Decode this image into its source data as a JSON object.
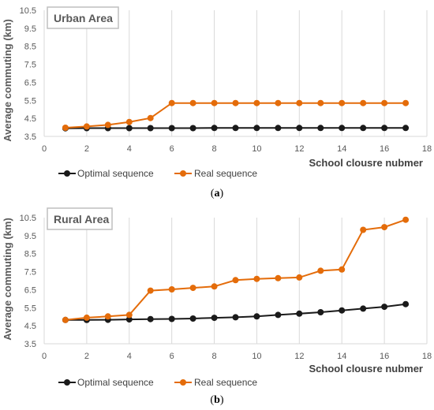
{
  "colors": {
    "optimal": "#1a1a1a",
    "real": "#e46c0a",
    "grid": "#d9d9d9",
    "text": "#595959",
    "title_border": "#bfbfbf"
  },
  "chart_data": [
    {
      "type": "line",
      "title": "Urban Area",
      "caption": "a",
      "xlabel": "School clousre nubmer",
      "ylabel": "Average commuting (km)",
      "xlim": [
        0,
        18
      ],
      "ylim": [
        3.5,
        10.5
      ],
      "xticks": [
        "0",
        "2",
        "4",
        "6",
        "8",
        "10",
        "12",
        "14",
        "16",
        "18"
      ],
      "yticks": [
        "3.5",
        "4.5",
        "5.5",
        "6.5",
        "7.5",
        "8.5",
        "9.5",
        "10.5"
      ],
      "grid": "vertical",
      "legend": "bottom-left",
      "x": [
        1,
        2,
        3,
        4,
        5,
        6,
        7,
        8,
        9,
        10,
        11,
        12,
        13,
        14,
        15,
        16,
        17
      ],
      "series": [
        {
          "name": "Optimal sequence",
          "color": "#1a1a1a",
          "values": [
            3.95,
            3.96,
            3.96,
            3.96,
            3.96,
            3.96,
            3.96,
            3.97,
            3.97,
            3.97,
            3.97,
            3.97,
            3.97,
            3.97,
            3.97,
            3.97,
            3.97
          ]
        },
        {
          "name": "Real sequence",
          "color": "#e46c0a",
          "values": [
            3.98,
            4.05,
            4.14,
            4.3,
            4.52,
            5.35,
            5.35,
            5.35,
            5.35,
            5.35,
            5.35,
            5.35,
            5.35,
            5.35,
            5.35,
            5.35,
            5.35
          ]
        }
      ]
    },
    {
      "type": "line",
      "title": "Rural Area",
      "caption": "b",
      "xlabel": "School clousre nubmer",
      "ylabel": "Average commuting (km)",
      "xlim": [
        0,
        18
      ],
      "ylim": [
        3.5,
        10.5
      ],
      "xticks": [
        "0",
        "2",
        "4",
        "6",
        "8",
        "10",
        "12",
        "14",
        "16",
        "18"
      ],
      "yticks": [
        "3.5",
        "4.5",
        "5.5",
        "6.5",
        "7.5",
        "8.5",
        "9.5",
        "10.5"
      ],
      "grid": "vertical",
      "legend": "bottom-left",
      "x": [
        1,
        2,
        3,
        4,
        5,
        6,
        7,
        8,
        9,
        10,
        11,
        12,
        13,
        14,
        15,
        16,
        17
      ],
      "series": [
        {
          "name": "Optimal sequence",
          "color": "#1a1a1a",
          "values": [
            4.82,
            4.82,
            4.83,
            4.85,
            4.87,
            4.88,
            4.9,
            4.94,
            4.97,
            5.02,
            5.1,
            5.17,
            5.25,
            5.35,
            5.45,
            5.55,
            5.7
          ]
        },
        {
          "name": "Real sequence",
          "color": "#e46c0a",
          "values": [
            4.82,
            4.95,
            5.02,
            5.1,
            6.45,
            6.52,
            6.6,
            6.68,
            7.03,
            7.1,
            7.14,
            7.18,
            7.55,
            7.62,
            9.82,
            9.97,
            10.38
          ]
        }
      ]
    }
  ]
}
